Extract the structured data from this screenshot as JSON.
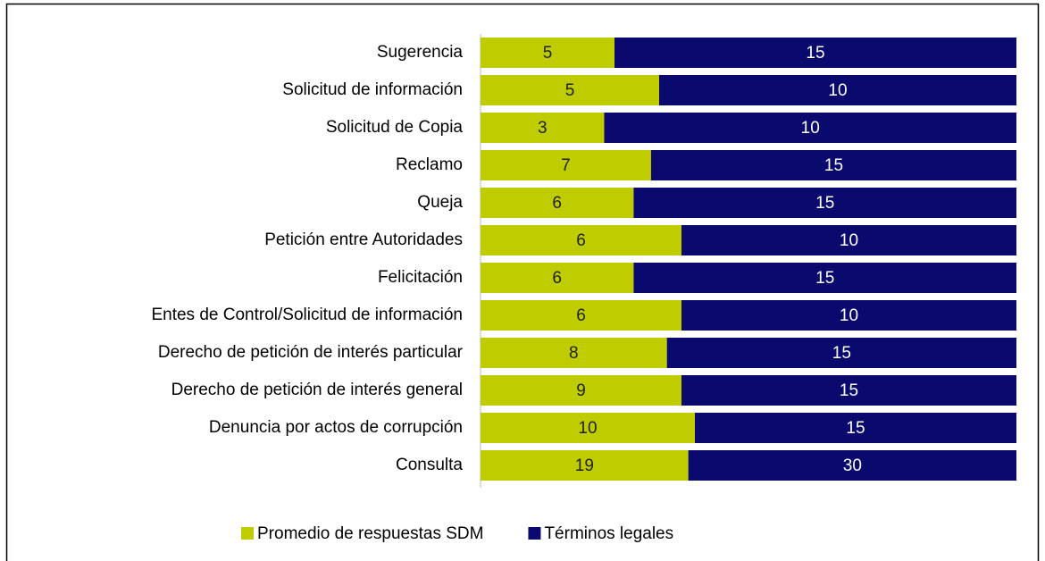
{
  "chart_data": {
    "type": "bar",
    "orientation": "horizontal",
    "stacking": "percent",
    "categories": [
      "Sugerencia",
      "Solicitud de información",
      "Solicitud de Copia",
      "Reclamo",
      "Queja",
      "Petición entre Autoridades",
      "Felicitación",
      "Entes de Control/Solicitud de información",
      "Derecho de petición de interés particular",
      "Derecho de petición de interés general",
      "Denuncia por actos de corrupción",
      "Consulta"
    ],
    "series": [
      {
        "name": "Promedio de respuestas SDM",
        "color": "#bfcc00",
        "label_color": "#222222",
        "values": [
          5,
          5,
          3,
          7,
          6,
          6,
          6,
          6,
          8,
          9,
          10,
          19
        ]
      },
      {
        "name": "Términos legales",
        "color": "#0a0a6e",
        "label_color": "#ffffff",
        "values": [
          15,
          10,
          10,
          15,
          15,
          10,
          15,
          10,
          15,
          15,
          15,
          30
        ]
      }
    ],
    "legend": "bottom"
  }
}
